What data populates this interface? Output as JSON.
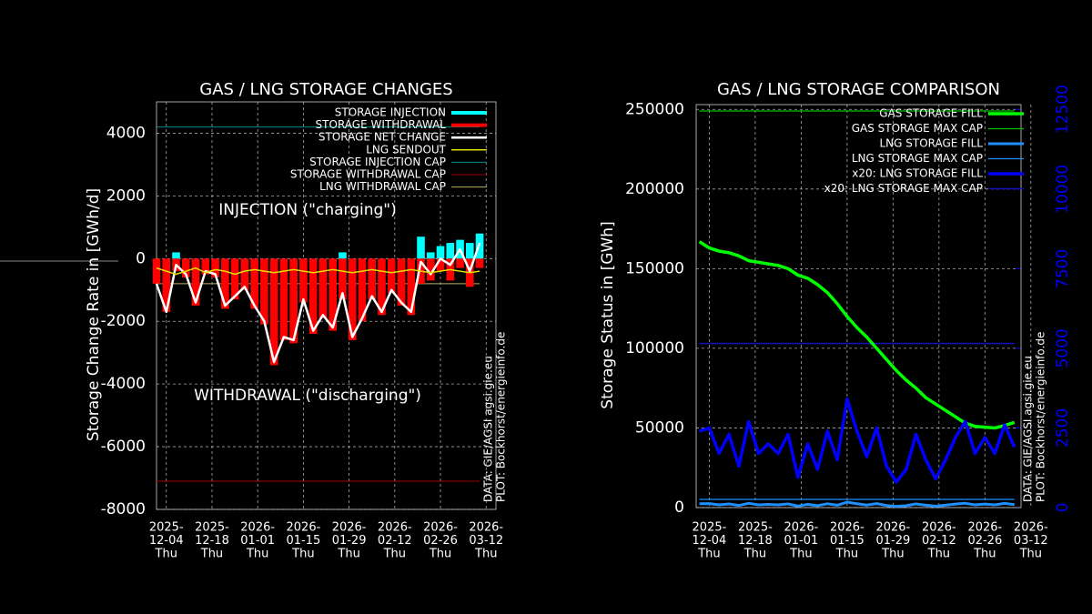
{
  "chart_data": [
    {
      "type": "line",
      "title": "GAS / LNG STORAGE CHANGES",
      "ylabel": "Storage Change Rate in [GWh/d]",
      "xlim": [
        "2025-12-01",
        "2026-03-15"
      ],
      "ylim": [
        -8000,
        5000
      ],
      "yticks": [
        -8000,
        -6000,
        -4000,
        -2000,
        0,
        2000,
        4000
      ],
      "xticks": [
        {
          "value": "2025-12-04",
          "label": [
            "2025-",
            "12-04",
            "Thu"
          ]
        },
        {
          "value": "2025-12-18",
          "label": [
            "2025-",
            "12-18",
            "Thu"
          ]
        },
        {
          "value": "2026-01-01",
          "label": [
            "2026-",
            "01-01",
            "Thu"
          ]
        },
        {
          "value": "2026-01-15",
          "label": [
            "2026-",
            "01-15",
            "Thu"
          ]
        },
        {
          "value": "2026-01-29",
          "label": [
            "2026-",
            "01-29",
            "Thu"
          ]
        },
        {
          "value": "2026-02-12",
          "label": [
            "2026-",
            "02-12",
            "Thu"
          ]
        },
        {
          "value": "2026-02-26",
          "label": [
            "2026-",
            "02-26",
            "Thu"
          ]
        },
        {
          "value": "2026-03-12",
          "label": [
            "2026-",
            "03-12",
            "Thu"
          ]
        }
      ],
      "grid": true,
      "legend": "upper right",
      "annotations": [
        "INJECTION (\"charging\")",
        "WITHDRAWAL (\"discharging\")",
        "DATA: GIE/AGSI agsi.gie.eu",
        "PLOT: Bockhorst/energieinfo.de"
      ],
      "x": [
        "2025-12-01",
        "2025-12-04",
        "2025-12-07",
        "2025-12-10",
        "2025-12-13",
        "2025-12-16",
        "2025-12-19",
        "2025-12-22",
        "2025-12-25",
        "2025-12-28",
        "2025-12-31",
        "2026-01-03",
        "2026-01-06",
        "2026-01-09",
        "2026-01-12",
        "2026-01-15",
        "2026-01-18",
        "2026-01-21",
        "2026-01-24",
        "2026-01-27",
        "2026-01-30",
        "2026-02-02",
        "2026-02-05",
        "2026-02-08",
        "2026-02-11",
        "2026-02-14",
        "2026-02-17",
        "2026-02-20",
        "2026-02-23",
        "2026-02-26",
        "2026-03-01",
        "2026-03-04",
        "2026-03-07",
        "2026-03-10"
      ],
      "series": [
        {
          "name": "STORAGE INJECTION",
          "color": "#00ffff",
          "style": "bar",
          "width": 4,
          "values": [
            0,
            0,
            200,
            0,
            0,
            0,
            0,
            0,
            0,
            0,
            0,
            0,
            0,
            0,
            0,
            0,
            0,
            0,
            0,
            200,
            0,
            0,
            0,
            0,
            0,
            0,
            0,
            700,
            200,
            400,
            500,
            600,
            500,
            800
          ]
        },
        {
          "name": "STORAGE WITHDRAWAL",
          "color": "#ff0000",
          "style": "bar",
          "width": 4,
          "values": [
            -800,
            -1700,
            -400,
            -600,
            -1500,
            -500,
            -600,
            -1600,
            -1300,
            -1000,
            -1600,
            -2100,
            -3400,
            -2600,
            -2700,
            -1400,
            -2400,
            -1900,
            -2300,
            -1300,
            -2600,
            -2000,
            -1300,
            -1800,
            -1100,
            -1500,
            -1800,
            -800,
            -700,
            -400,
            -700,
            -300,
            -900,
            -300
          ]
        },
        {
          "name": "STORAGE NET CHANGE",
          "color": "#ffffff",
          "style": "line",
          "width": 2.5,
          "values": [
            -800,
            -1700,
            -200,
            -500,
            -1400,
            -400,
            -500,
            -1500,
            -1200,
            -900,
            -1500,
            -2000,
            -3300,
            -2500,
            -2600,
            -1300,
            -2300,
            -1800,
            -2200,
            -1100,
            -2500,
            -1900,
            -1200,
            -1700,
            -1000,
            -1400,
            -1700,
            -100,
            -500,
            0,
            -200,
            300,
            -400,
            500
          ]
        },
        {
          "name": "LNG SENDOUT",
          "color": "#e0e000",
          "style": "line",
          "width": 1.5,
          "values": [
            -300,
            -400,
            -500,
            -400,
            -300,
            -450,
            -350,
            -400,
            -500,
            -400,
            -350,
            -400,
            -450,
            -400,
            -350,
            -400,
            -450,
            -400,
            -350,
            -400,
            -450,
            -400,
            -350,
            -400,
            -450,
            -400,
            -350,
            -400,
            -450,
            -400,
            -350,
            -400,
            -450,
            -400
          ]
        },
        {
          "name": "STORAGE INJECTION CAP",
          "color": "#008b8b",
          "style": "hline",
          "width": 1,
          "value": 4200
        },
        {
          "name": "STORAGE WITHDRAWAL CAP",
          "color": "#a00000",
          "style": "hline",
          "width": 1,
          "value": -7100
        },
        {
          "name": "LNG WITHDRAWAL CAP",
          "color": "#c0b060",
          "style": "hline",
          "width": 1,
          "value": -800
        }
      ]
    },
    {
      "type": "line",
      "title": "GAS / LNG STORAGE COMPARISON",
      "ylabel": "Storage Status in [GWh]",
      "xlim": [
        "2025-11-30",
        "2026-03-09"
      ],
      "ylim": [
        0,
        253000
      ],
      "yticks": [
        0,
        50000,
        100000,
        150000,
        200000,
        250000
      ],
      "y2lim": [
        0,
        12650
      ],
      "y2ticks": [
        0,
        2500,
        5000,
        7500,
        10000,
        12500
      ],
      "y2color": "#0000ff",
      "xticks": [
        {
          "value": "2025-12-04",
          "label": [
            "2025-",
            "12-04",
            "Thu"
          ]
        },
        {
          "value": "2025-12-18",
          "label": [
            "2025-",
            "12-18",
            "Thu"
          ]
        },
        {
          "value": "2026-01-01",
          "label": [
            "2026-",
            "01-01",
            "Thu"
          ]
        },
        {
          "value": "2026-01-15",
          "label": [
            "2026-",
            "01-15",
            "Thu"
          ]
        },
        {
          "value": "2026-01-29",
          "label": [
            "2026-",
            "01-29",
            "Thu"
          ]
        },
        {
          "value": "2026-02-12",
          "label": [
            "2026-",
            "02-12",
            "Thu"
          ]
        },
        {
          "value": "2026-02-26",
          "label": [
            "2026-",
            "02-26",
            "Thu"
          ]
        },
        {
          "value": "2026-03-12",
          "label": [
            "2026-",
            "03-12",
            "Thu"
          ]
        }
      ],
      "grid": true,
      "legend": "upper right",
      "annotations": [
        "DATA: GIE/AGSI agsi.gie.eu",
        "PLOT: Bockhorst/energieinfo.de"
      ],
      "x": [
        "2025-12-01",
        "2025-12-04",
        "2025-12-07",
        "2025-12-10",
        "2025-12-13",
        "2025-12-16",
        "2025-12-19",
        "2025-12-22",
        "2025-12-25",
        "2025-12-28",
        "2025-12-31",
        "2026-01-03",
        "2026-01-06",
        "2026-01-09",
        "2026-01-12",
        "2026-01-15",
        "2026-01-18",
        "2026-01-21",
        "2026-01-24",
        "2026-01-27",
        "2026-01-30",
        "2026-02-02",
        "2026-02-05",
        "2026-02-08",
        "2026-02-11",
        "2026-02-14",
        "2026-02-17",
        "2026-02-20",
        "2026-02-23",
        "2026-02-26",
        "2026-03-01",
        "2026-03-04",
        "2026-03-07"
      ],
      "series": [
        {
          "name": "GAS STORAGE FILL",
          "color": "#00ff00",
          "style": "line",
          "width": 3.5,
          "values": [
            167000,
            163000,
            161000,
            160000,
            158000,
            155000,
            154000,
            153000,
            152000,
            150000,
            146000,
            144000,
            140000,
            135000,
            128000,
            120000,
            113000,
            107000,
            100000,
            93000,
            86000,
            80000,
            75000,
            69000,
            65000,
            61000,
            57000,
            53000,
            51000,
            50500,
            50000,
            51500,
            53500
          ]
        },
        {
          "name": "GAS STORAGE MAX CAP",
          "color": "#00c000",
          "style": "hline",
          "width": 1.2,
          "value": 249000
        },
        {
          "name": "LNG STORAGE FILL",
          "color": "#1e90ff",
          "style": "line",
          "width": 3,
          "values": [
            2400,
            2500,
            1700,
            2300,
            1300,
            2700,
            1700,
            2000,
            1700,
            2300,
            950,
            2000,
            1200,
            2400,
            1500,
            3400,
            2400,
            1600,
            2500,
            1300,
            800,
            1200,
            2300,
            1500,
            900,
            1500,
            2200,
            2700,
            1700,
            2200,
            1700,
            2600,
            1900
          ]
        },
        {
          "name": "LNG STORAGE MAX CAP",
          "color": "#1e90ff",
          "style": "hline",
          "width": 1.2,
          "value": 5150
        },
        {
          "name": "x20: LNG STORAGE FILL",
          "color": "#0000ff",
          "style": "line",
          "width": 3.5,
          "axis": "y2",
          "values": [
            2400,
            2500,
            1700,
            2300,
            1300,
            2700,
            1700,
            2000,
            1700,
            2300,
            950,
            2000,
            1200,
            2400,
            1500,
            3400,
            2400,
            1600,
            2500,
            1300,
            800,
            1200,
            2300,
            1500,
            900,
            1500,
            2200,
            2700,
            1700,
            2200,
            1700,
            2600,
            1900
          ]
        },
        {
          "name": "x20: LNG STORAGE MAX CAP",
          "color": "#1010c0",
          "style": "hline",
          "width": 1.5,
          "axis": "y2",
          "value": 5150
        }
      ]
    }
  ]
}
